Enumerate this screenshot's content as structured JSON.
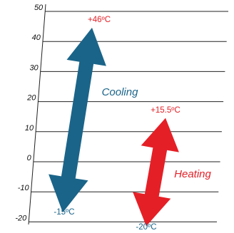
{
  "colors": {
    "grid": "#222222",
    "label_text": "#111111",
    "cooling": "#1a6489",
    "heating": "#e51f26",
    "cooling_text": "#1a6489",
    "heating_text": "#e51f26"
  },
  "scale": {
    "unit": "°C",
    "min": -20,
    "max": 50,
    "tick_values": [
      50,
      40,
      30,
      20,
      10,
      0,
      -10,
      -20
    ],
    "tick_labels": [
      "50",
      "40",
      "30",
      "20",
      "10",
      "0",
      "-10",
      "-20"
    ]
  },
  "cooling": {
    "label": "Cooling",
    "max": 46,
    "min": -15,
    "max_label": "+46ºC",
    "min_label": "-15ºC",
    "icon": "double-headed-arrow"
  },
  "heating": {
    "label": "Heating",
    "max": 15.5,
    "min": -20,
    "max_label": "+15.5ºC",
    "min_label": "-20ºC",
    "icon": "double-headed-arrow"
  }
}
